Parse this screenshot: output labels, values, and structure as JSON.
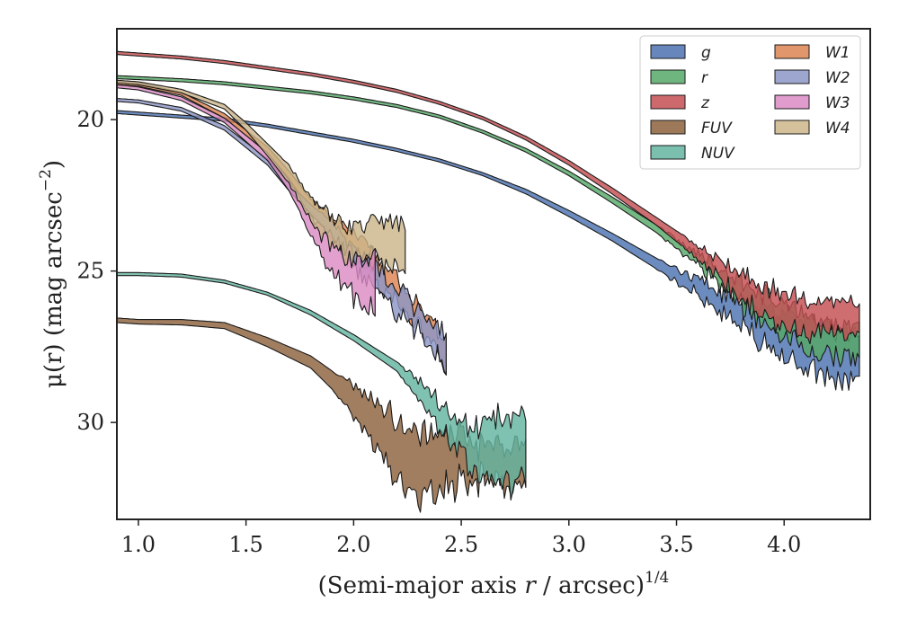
{
  "chart_data": {
    "type": "area",
    "xlabel_main": "(Semi-major axis ",
    "xlabel_var": "r",
    "xlabel_rest": " / arcsec)",
    "xlabel_sup": "1/4",
    "ylabel_main": "μ(r) (mag arcsec",
    "ylabel_sup": "−2",
    "ylabel_end": ")",
    "xlim": [
      0.9,
      4.4
    ],
    "ylim": [
      33.2,
      17.0
    ],
    "y_inverted": true,
    "xticks": [
      1.0,
      1.5,
      2.0,
      2.5,
      3.0,
      3.5,
      4.0
    ],
    "xtick_labels": [
      "1.0",
      "1.5",
      "2.0",
      "2.5",
      "3.0",
      "3.5",
      "4.0"
    ],
    "yticks": [
      20,
      25,
      30
    ],
    "ytick_labels": [
      "20",
      "25",
      "30"
    ],
    "grid": false,
    "legend_position": "top-right",
    "legend_columns": 2,
    "series": [
      {
        "name": "g",
        "color": "#4c72b0",
        "noise": 0.55,
        "noise_start": 3.4,
        "x": [
          0.9,
          1.0,
          1.2,
          1.4,
          1.6,
          1.8,
          2.0,
          2.2,
          2.4,
          2.6,
          2.8,
          3.0,
          3.2,
          3.4,
          3.6,
          3.8,
          4.0,
          4.2,
          4.35
        ],
        "y_upper": [
          19.7,
          19.75,
          19.85,
          19.95,
          20.15,
          20.4,
          20.65,
          20.95,
          21.3,
          21.75,
          22.3,
          23.0,
          23.75,
          24.55,
          25.3,
          26.0,
          26.4,
          26.8,
          27.2
        ],
        "y_lower": [
          19.8,
          19.85,
          19.95,
          20.05,
          20.25,
          20.5,
          20.75,
          21.05,
          21.4,
          21.85,
          22.45,
          23.2,
          24.0,
          24.9,
          25.85,
          26.9,
          27.9,
          28.4,
          28.8
        ]
      },
      {
        "name": "r",
        "color": "#55a868",
        "noise": 0.5,
        "noise_start": 3.4,
        "x": [
          0.9,
          1.0,
          1.2,
          1.4,
          1.6,
          1.8,
          2.0,
          2.2,
          2.4,
          2.6,
          2.8,
          3.0,
          3.2,
          3.4,
          3.6,
          3.8,
          4.0,
          4.2,
          4.35
        ],
        "y_upper": [
          18.55,
          18.58,
          18.65,
          18.75,
          18.9,
          19.05,
          19.25,
          19.5,
          19.85,
          20.35,
          20.95,
          21.7,
          22.55,
          23.45,
          24.4,
          25.4,
          26.1,
          26.7,
          26.9
        ],
        "y_lower": [
          18.65,
          18.68,
          18.75,
          18.85,
          19.0,
          19.15,
          19.35,
          19.6,
          19.95,
          20.45,
          21.07,
          21.85,
          22.75,
          23.7,
          24.8,
          26.1,
          27.2,
          27.8,
          28.0
        ]
      },
      {
        "name": "z",
        "color": "#c44e52",
        "noise": 0.5,
        "noise_start": 3.5,
        "x": [
          0.9,
          1.0,
          1.2,
          1.4,
          1.6,
          1.8,
          2.0,
          2.2,
          2.4,
          2.6,
          2.8,
          3.0,
          3.2,
          3.4,
          3.6,
          3.8,
          4.0,
          4.2,
          4.35
        ],
        "y_upper": [
          17.75,
          17.8,
          17.9,
          18.05,
          18.25,
          18.45,
          18.7,
          19.0,
          19.4,
          19.9,
          20.55,
          21.35,
          22.25,
          23.2,
          24.15,
          25.1,
          25.8,
          26.0,
          26.1
        ],
        "y_lower": [
          17.85,
          17.9,
          18.0,
          18.15,
          18.35,
          18.55,
          18.8,
          19.1,
          19.5,
          20.0,
          20.67,
          21.5,
          22.45,
          23.45,
          24.6,
          25.9,
          26.9,
          27.0,
          27.1
        ]
      },
      {
        "name": "FUV",
        "color": "#8c613c",
        "noise": 0.8,
        "noise_start": 1.9,
        "x": [
          0.9,
          1.0,
          1.2,
          1.4,
          1.6,
          1.8,
          1.9,
          2.0,
          2.1,
          2.2,
          2.3,
          2.4,
          2.5,
          2.6,
          2.7,
          2.8
        ],
        "y_upper": [
          26.55,
          26.6,
          26.6,
          26.7,
          27.2,
          27.8,
          28.3,
          28.8,
          29.4,
          29.9,
          30.3,
          30.3,
          30.5,
          30.7,
          30.8,
          30.7
        ],
        "y_lower": [
          26.7,
          26.75,
          26.78,
          26.9,
          27.5,
          28.2,
          28.9,
          29.8,
          30.8,
          31.8,
          32.4,
          32.2,
          31.9,
          32.0,
          32.1,
          32.2
        ]
      },
      {
        "name": "NUV",
        "color": "#64b5a0",
        "noise": 0.75,
        "noise_start": 2.2,
        "x": [
          0.9,
          1.0,
          1.2,
          1.4,
          1.6,
          1.8,
          2.0,
          2.2,
          2.3,
          2.4,
          2.5,
          2.6,
          2.7,
          2.8
        ],
        "y_upper": [
          25.05,
          25.05,
          25.1,
          25.3,
          25.7,
          26.3,
          27.1,
          28.0,
          28.6,
          29.4,
          30.0,
          30.0,
          29.9,
          29.8
        ],
        "y_lower": [
          25.15,
          25.15,
          25.2,
          25.4,
          25.8,
          26.45,
          27.3,
          28.3,
          29.2,
          30.2,
          31.0,
          31.8,
          32.0,
          31.9
        ]
      },
      {
        "name": "W1",
        "color": "#dd8452",
        "noise": 0.45,
        "noise_start": 1.75,
        "x": [
          0.9,
          1.0,
          1.2,
          1.4,
          1.6,
          1.7,
          1.8,
          1.9,
          2.0,
          2.1,
          2.2,
          2.3,
          2.4,
          2.43
        ],
        "y_upper": [
          18.75,
          18.8,
          19.1,
          19.8,
          20.9,
          21.7,
          22.6,
          23.2,
          23.7,
          24.4,
          25.2,
          26.2,
          27.0,
          27.3
        ],
        "y_lower": [
          18.85,
          18.9,
          19.2,
          19.95,
          21.1,
          21.95,
          23.0,
          23.9,
          24.6,
          25.3,
          26.0,
          26.8,
          27.7,
          28.6
        ]
      },
      {
        "name": "W2",
        "color": "#8c96c6",
        "noise": 0.55,
        "noise_start": 1.8,
        "x": [
          0.9,
          1.0,
          1.2,
          1.4,
          1.6,
          1.7,
          1.8,
          1.9,
          2.0,
          2.1,
          2.2,
          2.3,
          2.4,
          2.43
        ],
        "y_upper": [
          19.3,
          19.35,
          19.6,
          20.2,
          21.3,
          22.1,
          22.8,
          23.4,
          24.3,
          24.9,
          25.5,
          26.3,
          26.9,
          27.2
        ],
        "y_lower": [
          19.4,
          19.45,
          19.72,
          20.35,
          21.5,
          22.35,
          23.1,
          23.9,
          24.9,
          25.6,
          26.3,
          27.1,
          27.8,
          28.4
        ]
      },
      {
        "name": "W3",
        "color": "#da8bc3",
        "noise": 0.7,
        "noise_start": 1.72,
        "x": [
          0.9,
          1.0,
          1.2,
          1.4,
          1.6,
          1.7,
          1.8,
          1.9,
          2.0,
          2.1
        ],
        "y_upper": [
          18.85,
          18.92,
          19.25,
          19.95,
          21.1,
          22.0,
          23.2,
          23.9,
          24.6,
          24.7
        ],
        "y_lower": [
          18.95,
          19.02,
          19.37,
          20.1,
          21.35,
          22.35,
          23.8,
          25.1,
          25.8,
          26.6
        ]
      },
      {
        "name": "W4",
        "color": "#ccb58a",
        "noise": 0.5,
        "noise_start": 1.65,
        "x": [
          0.9,
          1.0,
          1.2,
          1.4,
          1.5,
          1.6,
          1.7,
          1.8,
          1.9,
          2.0,
          2.1,
          2.2,
          2.24
        ],
        "y_upper": [
          18.7,
          18.75,
          19.0,
          19.5,
          20.1,
          20.8,
          21.5,
          22.6,
          23.2,
          23.6,
          23.3,
          23.4,
          23.4
        ],
        "y_lower": [
          18.8,
          18.85,
          19.12,
          19.65,
          20.35,
          21.2,
          22.1,
          23.4,
          24.2,
          24.6,
          24.6,
          25.0,
          25.0
        ]
      }
    ]
  }
}
